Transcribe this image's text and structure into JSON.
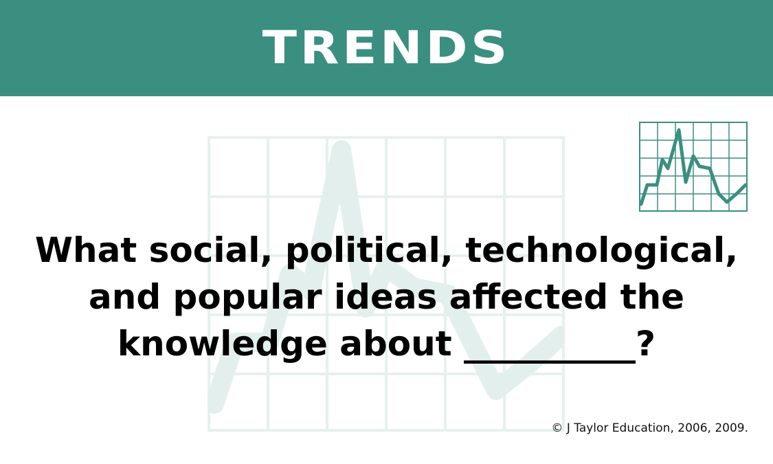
{
  "header": {
    "title": "TRENDS",
    "background_color": "#3a8f80"
  },
  "question": {
    "line1": "What social, political, technological,",
    "line2": "and popular ideas affected the",
    "line3": "knowledge about __________?"
  },
  "footer": {
    "copyright": "© J Taylor Education, 2006, 2009."
  },
  "icons": {
    "trend_chart": "line-chart-icon",
    "watermark": "line-chart-watermark-icon"
  },
  "colors": {
    "accent": "#3a8f80",
    "watermark": "#e6f1ee",
    "text": "#000000"
  }
}
